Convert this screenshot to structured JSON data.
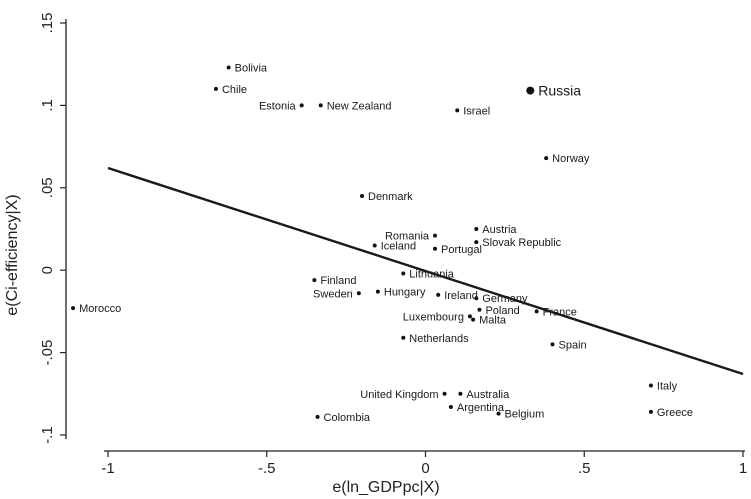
{
  "chart_data": {
    "type": "scatter",
    "title": "",
    "xlabel": "e(ln_GDPpc|X)",
    "ylabel": "e(Ci-efficiency|X)",
    "xlim": [
      -1.1,
      1.0
    ],
    "ylim": [
      -0.1,
      0.15
    ],
    "xticks": [
      -1,
      -0.5,
      0,
      0.5,
      1
    ],
    "xtick_labels": [
      "-1",
      "-.5",
      "0",
      ".5",
      "1"
    ],
    "yticks": [
      -0.1,
      -0.05,
      0,
      0.05,
      0.1,
      0.15
    ],
    "ytick_labels": [
      "-.1",
      "-.05",
      "0",
      ".05",
      ".1",
      ".15"
    ],
    "grid": false,
    "fit_line": {
      "x": [
        -1.0,
        1.0
      ],
      "y": [
        0.062,
        -0.063
      ]
    },
    "points": [
      {
        "name": "Bolivia",
        "x": -0.62,
        "y": 0.123,
        "side": "right"
      },
      {
        "name": "Chile",
        "x": -0.66,
        "y": 0.11,
        "side": "right"
      },
      {
        "name": "Estonia",
        "x": -0.39,
        "y": 0.1,
        "side": "left"
      },
      {
        "name": "New Zealand",
        "x": -0.33,
        "y": 0.1,
        "side": "right"
      },
      {
        "name": "Israel",
        "x": 0.1,
        "y": 0.097,
        "side": "right"
      },
      {
        "name": "Russia",
        "x": 0.33,
        "y": 0.109,
        "side": "right",
        "highlight": true
      },
      {
        "name": "Norway",
        "x": 0.38,
        "y": 0.068,
        "side": "right"
      },
      {
        "name": "Denmark",
        "x": -0.2,
        "y": 0.045,
        "side": "right"
      },
      {
        "name": "Austria",
        "x": 0.16,
        "y": 0.025,
        "side": "right"
      },
      {
        "name": "Romania",
        "x": 0.03,
        "y": 0.021,
        "side": "left"
      },
      {
        "name": "Slovak Republic",
        "x": 0.16,
        "y": 0.017,
        "side": "right"
      },
      {
        "name": "Iceland",
        "x": -0.16,
        "y": 0.015,
        "side": "right"
      },
      {
        "name": "Portugal",
        "x": 0.03,
        "y": 0.013,
        "side": "right"
      },
      {
        "name": "Lithuania",
        "x": -0.07,
        "y": -0.002,
        "side": "right"
      },
      {
        "name": "Finland",
        "x": -0.35,
        "y": -0.006,
        "side": "right"
      },
      {
        "name": "Hungary",
        "x": -0.15,
        "y": -0.013,
        "side": "right"
      },
      {
        "name": "Sweden",
        "x": -0.21,
        "y": -0.014,
        "side": "left"
      },
      {
        "name": "Ireland",
        "x": 0.04,
        "y": -0.015,
        "side": "right"
      },
      {
        "name": "Germany",
        "x": 0.16,
        "y": -0.017,
        "side": "right"
      },
      {
        "name": "Morocco",
        "x": -1.11,
        "y": -0.023,
        "side": "right"
      },
      {
        "name": "Poland",
        "x": 0.17,
        "y": -0.024,
        "side": "right"
      },
      {
        "name": "France",
        "x": 0.35,
        "y": -0.025,
        "side": "right"
      },
      {
        "name": "Luxembourg",
        "x": 0.14,
        "y": -0.028,
        "side": "left"
      },
      {
        "name": "Malta",
        "x": 0.15,
        "y": -0.03,
        "side": "right"
      },
      {
        "name": "Netherlands",
        "x": -0.07,
        "y": -0.041,
        "side": "right"
      },
      {
        "name": "Spain",
        "x": 0.4,
        "y": -0.045,
        "side": "right"
      },
      {
        "name": "United Kingdom",
        "x": 0.06,
        "y": -0.075,
        "side": "left"
      },
      {
        "name": "Australia",
        "x": 0.11,
        "y": -0.075,
        "side": "right"
      },
      {
        "name": "Argentina",
        "x": 0.08,
        "y": -0.083,
        "side": "right"
      },
      {
        "name": "Belgium",
        "x": 0.23,
        "y": -0.087,
        "side": "right"
      },
      {
        "name": "Colombia",
        "x": -0.34,
        "y": -0.089,
        "side": "right"
      },
      {
        "name": "Italy",
        "x": 0.71,
        "y": -0.07,
        "side": "right"
      },
      {
        "name": "Greece",
        "x": 0.71,
        "y": -0.086,
        "side": "right"
      }
    ]
  }
}
